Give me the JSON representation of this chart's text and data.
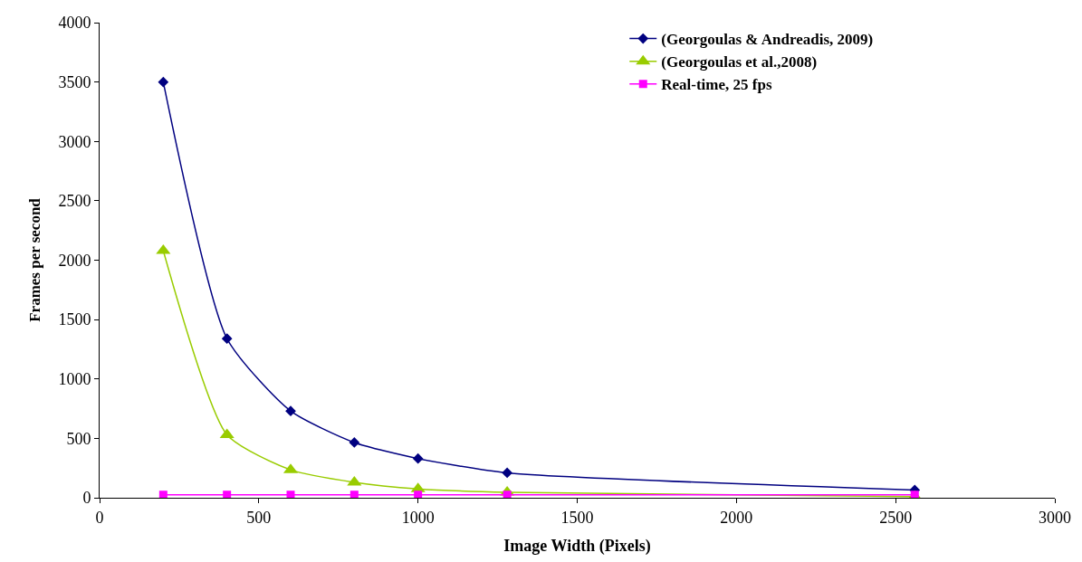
{
  "chart_data": {
    "type": "line",
    "xlabel": "Image Width (Pixels)",
    "ylabel": "Frames per second",
    "x": [
      200,
      400,
      600,
      800,
      1000,
      1280,
      2560
    ],
    "series": [
      {
        "name": "(Georgoulas & Andreadis, 2009)",
        "color": "#000080",
        "marker": "diamond",
        "values": [
          3500,
          1340,
          730,
          465,
          330,
          210,
          65
        ]
      },
      {
        "name": "(Georgoulas et al.,2008)",
        "color": "#99cc00",
        "marker": "triangle",
        "values": [
          2080,
          530,
          235,
          130,
          75,
          45,
          10
        ]
      },
      {
        "name": "Real-time, 25 fps",
        "color": "#ff00ff",
        "marker": "square",
        "values": [
          25,
          25,
          25,
          25,
          25,
          25,
          25
        ]
      }
    ],
    "xlim": [
      0,
      3000
    ],
    "xticks": [
      0,
      500,
      1000,
      1500,
      2000,
      2500,
      3000
    ],
    "ylim": [
      0,
      4000
    ],
    "yticks": [
      0,
      500,
      1000,
      1500,
      2000,
      2500,
      3000,
      3500,
      4000
    ],
    "legend": "top right",
    "line_style": "solid"
  }
}
